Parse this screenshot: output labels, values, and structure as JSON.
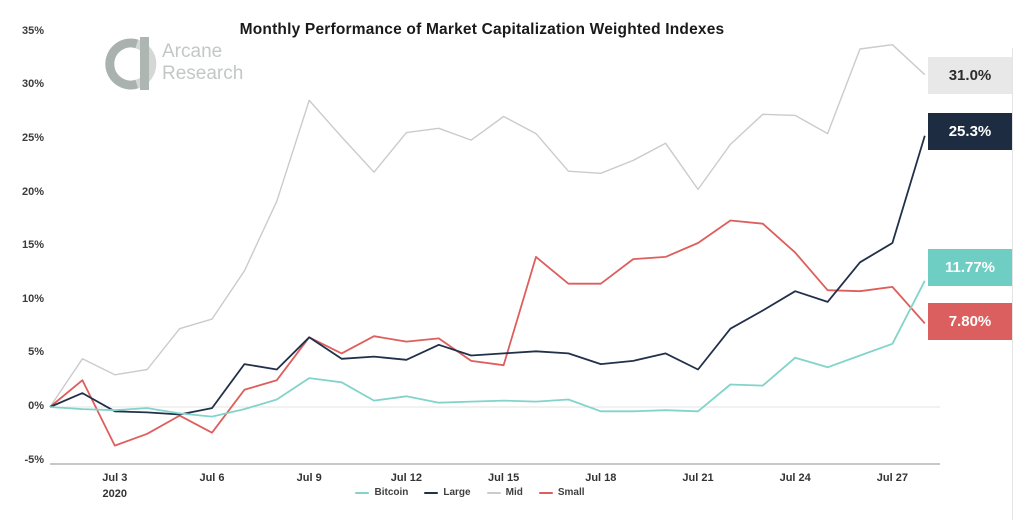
{
  "header": {
    "title": "Monthly Performance of Market Capitalization Weighted Indexes",
    "logo": {
      "line1": "Arcane",
      "line2": "Research"
    }
  },
  "chart_data": {
    "type": "line",
    "title": "Monthly Performance of Market Capitalization Weighted Indexes",
    "grid": "horizontal line at 0% only",
    "legend_position": "bottom",
    "ylim": [
      -5,
      35
    ],
    "y_ticks": [
      "35%",
      "30%",
      "25%",
      "20%",
      "15%",
      "10%",
      "5%",
      "0%",
      "-5%"
    ],
    "x_ticks": [
      "Jul 3",
      "Jul 6",
      "Jul 9",
      "Jul 12",
      "Jul 15",
      "Jul 18",
      "Jul 21",
      "Jul 24",
      "Jul 27"
    ],
    "x_axis_year": "2020",
    "categories": [
      "Jul 1",
      "Jul 2",
      "Jul 3",
      "Jul 4",
      "Jul 5",
      "Jul 6",
      "Jul 7",
      "Jul 8",
      "Jul 9",
      "Jul 10",
      "Jul 11",
      "Jul 12",
      "Jul 13",
      "Jul 14",
      "Jul 15",
      "Jul 16",
      "Jul 17",
      "Jul 18",
      "Jul 19",
      "Jul 20",
      "Jul 21",
      "Jul 22",
      "Jul 23",
      "Jul 24",
      "Jul 25",
      "Jul 26",
      "Jul 27",
      "Jul 28"
    ],
    "series": [
      {
        "name": "Bitcoin",
        "line_color": "#82d4ca",
        "end_label": "11.77%",
        "end_label_bg": "#6fcec4",
        "end_label_text_color": "#ffffff",
        "values": [
          0,
          -0.2,
          -0.3,
          -0.1,
          -0.6,
          -0.9,
          -0.2,
          0.7,
          2.7,
          2.3,
          0.6,
          1.0,
          0.4,
          0.5,
          0.6,
          0.5,
          0.7,
          -0.4,
          -0.4,
          -0.3,
          -0.4,
          2.1,
          2.0,
          4.6,
          3.7,
          4.8,
          5.9,
          11.77
        ]
      },
      {
        "name": "Large",
        "line_color": "#22304a",
        "end_label": "25.3%",
        "end_label_bg": "#1e2c41",
        "end_label_text_color": "#ffffff",
        "values": [
          0,
          1.3,
          -0.4,
          -0.5,
          -0.7,
          -0.1,
          4.0,
          3.5,
          6.5,
          4.5,
          4.7,
          4.4,
          5.8,
          4.8,
          5.0,
          5.2,
          5.0,
          4.0,
          4.3,
          5.0,
          3.5,
          7.3,
          9.0,
          10.8,
          9.8,
          13.5,
          15.3,
          25.3
        ]
      },
      {
        "name": "Mid",
        "line_color": "#cbcbcb",
        "end_label": "31.0%",
        "end_label_bg": "#e8e8e8",
        "end_label_text_color": "#2d2d2d",
        "values": [
          0,
          4.5,
          3.0,
          3.5,
          7.3,
          8.2,
          12.7,
          19.2,
          28.6,
          25.2,
          21.9,
          25.6,
          26.0,
          24.9,
          27.1,
          25.5,
          22.0,
          21.8,
          23.0,
          24.6,
          20.3,
          24.5,
          27.3,
          27.2,
          25.5,
          33.4,
          33.8,
          31.0
        ]
      },
      {
        "name": "Small",
        "line_color": "#dd5f5c",
        "end_label": "7.80%",
        "end_label_bg": "#da5f5e",
        "end_label_text_color": "#ffffff",
        "values": [
          0,
          2.5,
          -3.6,
          -2.5,
          -0.8,
          -2.4,
          1.6,
          2.5,
          6.5,
          5.0,
          6.6,
          6.1,
          6.4,
          4.3,
          3.9,
          14.0,
          11.5,
          11.5,
          13.8,
          14.0,
          15.3,
          17.4,
          17.1,
          14.4,
          10.9,
          10.8,
          11.2,
          7.8
        ]
      }
    ]
  }
}
